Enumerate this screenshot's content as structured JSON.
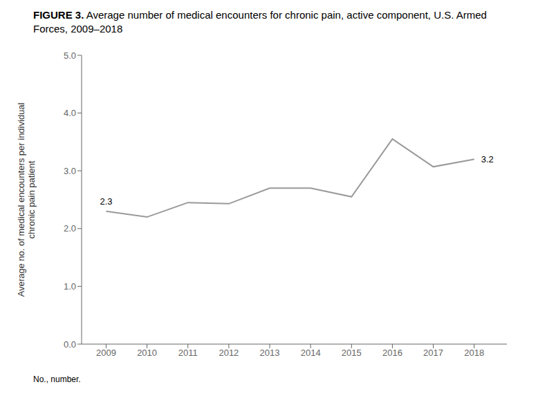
{
  "chart_data": {
    "type": "line",
    "title": "FIGURE 3. Average number of medical encounters for chronic pain, active component, U.S. Armed Forces, 2009–2018",
    "ylabel": "Average no. of medical encounters per individual\nchronic pain patient",
    "x": [
      2009,
      2010,
      2011,
      2012,
      2013,
      2014,
      2015,
      2016,
      2017,
      2018
    ],
    "values": [
      2.3,
      2.2,
      2.45,
      2.43,
      2.7,
      2.7,
      2.55,
      3.55,
      3.07,
      3.2
    ],
    "color": "#999999",
    "xlim": [
      2008.4,
      2018.8
    ],
    "xticks": [
      2009,
      2010,
      2011,
      2012,
      2013,
      2014,
      2015,
      2016,
      2017,
      2018
    ],
    "ylim": [
      0.0,
      5.0
    ],
    "yticks": [
      {
        "value": 0,
        "label": "0.0"
      },
      {
        "value": 1,
        "label": "1.0"
      },
      {
        "value": 2,
        "label": "2.0"
      },
      {
        "value": 3,
        "label": "3.0"
      },
      {
        "value": 4,
        "label": "4.0"
      },
      {
        "value": 5,
        "label": "5.0"
      }
    ],
    "grid": false,
    "annotations": [
      {
        "text": "2.3",
        "x": 2009,
        "y": 2.3
      },
      {
        "text": "3.2",
        "x": 2018,
        "y": 3.2
      }
    ],
    "footnote": "No., number."
  }
}
